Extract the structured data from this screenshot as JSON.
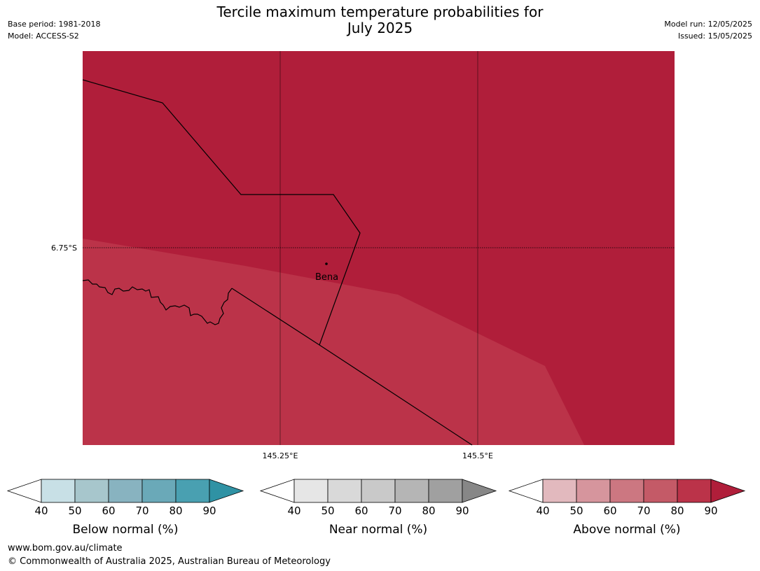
{
  "title_line1": "Tercile maximum temperature probabilities for",
  "title_line2": "July 2025",
  "base_period": "Base period: 1981-2018",
  "model": "Model: ACCESS-S2",
  "model_run": "Model run: 12/05/2025",
  "issued": "Issued: 15/05/2025",
  "map": {
    "lat_label": "6.75°S",
    "lon_labels": [
      "145.25°E",
      "145.5°E"
    ],
    "place": "Bena",
    "colors": {
      "above_80_90": "#b01e3a",
      "above_70_80": "#bb3349",
      "border": "#000000"
    }
  },
  "legends": [
    {
      "label": "Below normal (%)",
      "ticks": [
        "40",
        "50",
        "60",
        "70",
        "80",
        "90"
      ],
      "colors": [
        "#ffffff",
        "#c8e0e6",
        "#a7c6cc",
        "#88b3c0",
        "#6aa9b8",
        "#49a0b1",
        "#2f92a4"
      ]
    },
    {
      "label": "Near normal (%)",
      "ticks": [
        "40",
        "50",
        "60",
        "70",
        "80",
        "90"
      ],
      "colors": [
        "#ffffff",
        "#e6e6e6",
        "#d9d9d9",
        "#c9c9c9",
        "#b5b5b5",
        "#a0a0a0",
        "#878787"
      ]
    },
    {
      "label": "Above normal (%)",
      "ticks": [
        "40",
        "50",
        "60",
        "70",
        "80",
        "90"
      ],
      "colors": [
        "#ffffff",
        "#e2b9be",
        "#d6959d",
        "#cc7781",
        "#c45a67",
        "#bb3349",
        "#b01e3a"
      ]
    }
  ],
  "footer_url": "www.bom.gov.au/climate",
  "footer_copyright": "© Commonwealth of Australia 2025, Australian Bureau of Meteorology"
}
